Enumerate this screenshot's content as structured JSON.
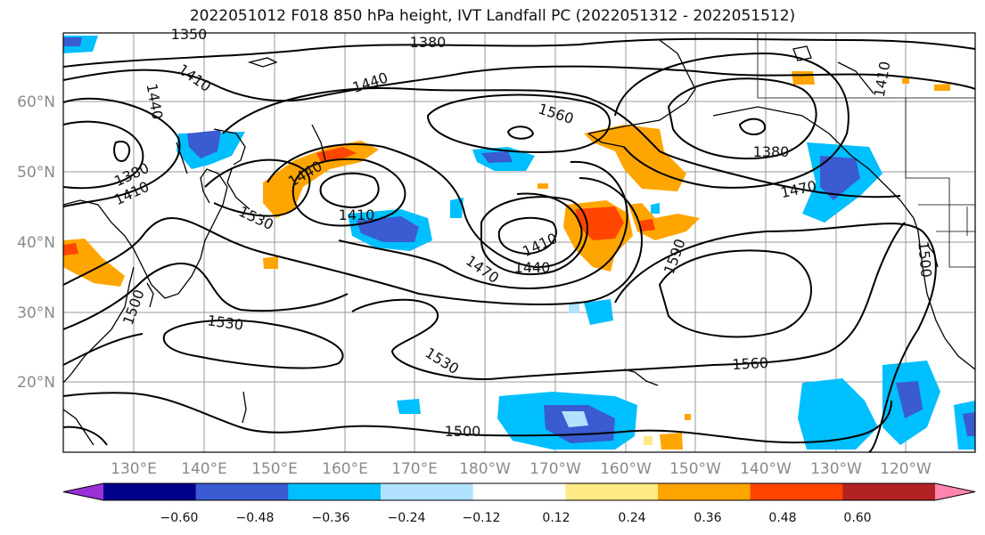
{
  "title": "2022051012 F018 850 hPa height, IVT Landfall PC (2022051312 - 2022051512)",
  "map": {
    "lat_labels": [
      "60°N",
      "50°N",
      "40°N",
      "30°N",
      "20°N"
    ],
    "lon_labels": [
      "130°E",
      "140°E",
      "150°E",
      "160°E",
      "170°E",
      "180°W",
      "170°W",
      "160°W",
      "150°W",
      "140°W",
      "130°W",
      "120°W"
    ],
    "contour_labels": [
      {
        "text": "1350"
      },
      {
        "text": "1380"
      },
      {
        "text": "1410"
      },
      {
        "text": "1440"
      },
      {
        "text": "1440"
      },
      {
        "text": "1560"
      },
      {
        "text": "1380"
      },
      {
        "text": "1410"
      },
      {
        "text": "1380"
      },
      {
        "text": "1410"
      },
      {
        "text": "1440"
      },
      {
        "text": "1410"
      },
      {
        "text": "1530"
      },
      {
        "text": "1470"
      },
      {
        "text": "1410"
      },
      {
        "text": "1440"
      },
      {
        "text": "1470"
      },
      {
        "text": "1590"
      },
      {
        "text": "1500"
      },
      {
        "text": "1500"
      },
      {
        "text": "1530"
      },
      {
        "text": "1530"
      },
      {
        "text": "1560"
      },
      {
        "text": "1500"
      }
    ]
  },
  "colorbar": {
    "colors": [
      "#9b30d9",
      "#00008b",
      "#3a5bd1",
      "#00bfff",
      "#b0e2ff",
      "#ffffff",
      "#ffeb85",
      "#ffa500",
      "#ff4500",
      "#b22222",
      "#ff85b0"
    ],
    "tick_labels": [
      "−0.60",
      "−0.48",
      "−0.36",
      "−0.24",
      "−0.12",
      "0.12",
      "0.24",
      "0.36",
      "0.48",
      "0.60"
    ]
  }
}
